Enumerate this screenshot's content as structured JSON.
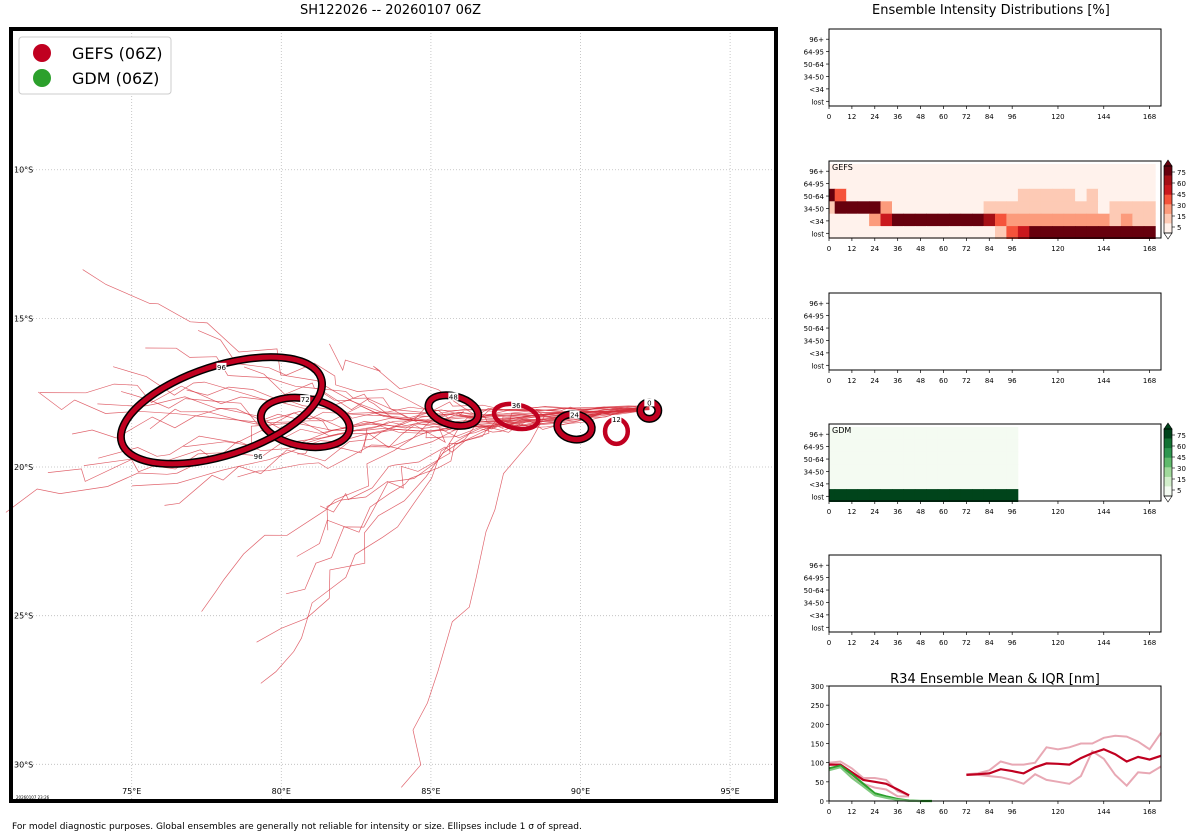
{
  "map": {
    "title": "SH122026 -- 20260107 06Z",
    "lon_ticks": [
      "75°E",
      "80°E",
      "85°E",
      "90°E",
      "95°E"
    ],
    "lon_values": [
      75,
      80,
      85,
      90,
      95
    ],
    "lat_ticks": [
      "10°S",
      "15°S",
      "20°S",
      "25°S",
      "30°S"
    ],
    "lat_values": [
      -10,
      -15,
      -20,
      -25,
      -30
    ],
    "lon_range": [
      71,
      96.5
    ],
    "lat_range": [
      -31.2,
      -5.3
    ],
    "legend": [
      {
        "label": "GEFS (06Z)",
        "color": "#c00020"
      },
      {
        "label": "GDM (06Z)",
        "color": "#2ca02c"
      }
    ],
    "stamp": "20260107 23:26",
    "ellipses": [
      {
        "hour": "0",
        "lon": 92.3,
        "lat": -18.1,
        "rx_deg": 0.3,
        "ry_deg": 0.28,
        "tilt": 0
      },
      {
        "hour": "12",
        "lon": 91.2,
        "lat": -18.8,
        "rx_deg": 0.38,
        "ry_deg": 0.42,
        "tilt": 0
      },
      {
        "hour": "24",
        "lon": 89.8,
        "lat": -18.65,
        "rx_deg": 0.58,
        "ry_deg": 0.42,
        "tilt": 10
      },
      {
        "hour": "36",
        "lon": 87.85,
        "lat": -18.3,
        "rx_deg": 0.75,
        "ry_deg": 0.4,
        "tilt": 12
      },
      {
        "hour": "48",
        "lon": 85.75,
        "lat": -18.1,
        "rx_deg": 0.85,
        "ry_deg": 0.48,
        "tilt": 15
      },
      {
        "hour": "72",
        "lon": 80.8,
        "lat": -18.5,
        "rx_deg": 1.5,
        "ry_deg": 0.8,
        "tilt": 10
      },
      {
        "hour": "96",
        "lon": 78.0,
        "lat": -18.1,
        "rx_deg": 3.5,
        "ry_deg": 1.5,
        "tilt": -18
      }
    ],
    "tracks_color": "#d6303c"
  },
  "right_panels": {
    "top_title": "Ensemble Intensity Distributions [%]",
    "y_labels": [
      "96+",
      "64-95",
      "50-64",
      "34-50",
      "<34",
      "lost"
    ],
    "x_ticks": [
      0,
      12,
      24,
      36,
      48,
      60,
      72,
      84,
      96,
      120,
      144,
      168
    ],
    "panels": [
      {
        "label": "",
        "colorbar": null
      },
      {
        "label": "GEFS",
        "colorbar": "red"
      },
      {
        "label": "",
        "colorbar": null
      },
      {
        "label": "GDM",
        "colorbar": "green"
      },
      {
        "label": "",
        "colorbar": null
      }
    ],
    "colorbar_ticks": [
      75,
      60,
      45,
      30,
      15,
      5
    ]
  },
  "chart_data": [
    {
      "type": "heatmap",
      "title": "GEFS",
      "categories_x": [
        0,
        6,
        12,
        18,
        24,
        30,
        36,
        42,
        48,
        54,
        60,
        66,
        72,
        78,
        84,
        90,
        96,
        102,
        108,
        114,
        120,
        126,
        132,
        138,
        144,
        150,
        156,
        162,
        168
      ],
      "categories_y": [
        "96+",
        "64-95",
        "50-64",
        "34-50",
        "<34",
        "lost"
      ],
      "rows": {
        "96+": [
          3,
          3,
          3,
          3,
          3,
          3,
          3,
          3,
          3,
          3,
          3,
          3,
          3,
          3,
          3,
          3,
          3,
          3,
          3,
          3,
          3,
          3,
          3,
          3,
          3,
          3,
          3,
          3,
          3
        ],
        "64-95": [
          3,
          3,
          3,
          3,
          3,
          3,
          3,
          3,
          3,
          3,
          3,
          3,
          3,
          3,
          3,
          3,
          3,
          3,
          3,
          3,
          3,
          3,
          3,
          3,
          3,
          3,
          3,
          3,
          3
        ],
        "50-64": [
          90,
          40,
          3,
          3,
          3,
          3,
          3,
          3,
          3,
          3,
          3,
          3,
          3,
          3,
          3,
          3,
          3,
          15,
          15,
          15,
          15,
          15,
          3,
          15,
          3,
          3,
          3,
          3,
          3
        ],
        "34-50": [
          15,
          85,
          90,
          90,
          80,
          30,
          3,
          3,
          3,
          3,
          3,
          3,
          3,
          3,
          15,
          15,
          15,
          15,
          15,
          15,
          15,
          15,
          15,
          15,
          3,
          15,
          15,
          15,
          15
        ],
        "<34": [
          3,
          3,
          3,
          3,
          30,
          60,
          90,
          90,
          90,
          90,
          90,
          90,
          90,
          90,
          70,
          45,
          30,
          30,
          30,
          30,
          30,
          30,
          30,
          30,
          30,
          15,
          30,
          15,
          15
        ],
        "lost": [
          3,
          3,
          3,
          3,
          3,
          3,
          3,
          3,
          3,
          3,
          3,
          3,
          3,
          3,
          3,
          15,
          40,
          60,
          85,
          85,
          85,
          85,
          85,
          85,
          85,
          85,
          85,
          85,
          85
        ]
      },
      "colorbar_ticks": [
        5,
        15,
        30,
        45,
        60,
        75
      ]
    },
    {
      "type": "heatmap",
      "title": "GDM",
      "categories_x": [
        0,
        6,
        12,
        18,
        24,
        30,
        36,
        42,
        48,
        54,
        60,
        66,
        72,
        78,
        84,
        90,
        96
      ],
      "categories_y": [
        "96+",
        "64-95",
        "50-64",
        "34-50",
        "<34",
        "lost"
      ],
      "rows": {
        "96+": [
          2,
          2,
          2,
          2,
          2,
          2,
          2,
          2,
          2,
          2,
          2,
          2,
          2,
          2,
          2,
          2,
          2
        ],
        "64-95": [
          2,
          2,
          2,
          2,
          2,
          2,
          2,
          2,
          2,
          2,
          2,
          2,
          2,
          2,
          2,
          2,
          2
        ],
        "50-64": [
          2,
          2,
          2,
          2,
          2,
          2,
          2,
          2,
          2,
          2,
          2,
          2,
          2,
          2,
          2,
          2,
          2
        ],
        "34-50": [
          2,
          2,
          2,
          2,
          2,
          2,
          2,
          2,
          2,
          2,
          2,
          2,
          2,
          2,
          2,
          2,
          2
        ],
        "<34": [
          2,
          2,
          2,
          2,
          2,
          2,
          2,
          2,
          2,
          2,
          2,
          2,
          2,
          2,
          2,
          2,
          2
        ],
        "lost": [
          95,
          95,
          95,
          95,
          95,
          95,
          95,
          95,
          95,
          95,
          95,
          95,
          95,
          95,
          95,
          95,
          95
        ]
      },
      "colorbar_ticks": [
        5,
        15,
        30,
        45,
        60,
        75
      ]
    },
    {
      "type": "line",
      "title": "R34 Ensemble Mean & IQR [nm]",
      "ylim": [
        0,
        300
      ],
      "yticks": [
        0,
        50,
        100,
        150,
        200,
        250,
        300
      ],
      "xticks": [
        0,
        12,
        24,
        36,
        48,
        60,
        72,
        84,
        96,
        120,
        144,
        168
      ],
      "series": [
        {
          "color": "#e8a8b4",
          "role": "gefs-iqr-upper",
          "points": [
            [
              0,
              100
            ],
            [
              6,
              103
            ],
            [
              12,
              85
            ],
            [
              18,
              60
            ],
            [
              24,
              60
            ],
            [
              30,
              55
            ],
            [
              36,
              25
            ],
            [
              42,
              15
            ]
          ]
        },
        {
          "color": "#e8a8b4",
          "role": "gefs-iqr-lower",
          "points": [
            [
              0,
              85
            ],
            [
              6,
              90
            ],
            [
              12,
              65
            ],
            [
              18,
              45
            ],
            [
              24,
              35
            ],
            [
              30,
              30
            ],
            [
              36,
              12
            ],
            [
              42,
              12
            ]
          ]
        },
        {
          "color": "#c00020",
          "role": "gefs-mean",
          "points": [
            [
              0,
              95
            ],
            [
              6,
              95
            ],
            [
              12,
              75
            ],
            [
              18,
              55
            ],
            [
              24,
              50
            ],
            [
              30,
              45
            ],
            [
              36,
              30
            ],
            [
              42,
              15
            ]
          ]
        },
        {
          "color": "#e8a8b4",
          "role": "gefs-iqr-upper-late",
          "points": [
            [
              72,
              70
            ],
            [
              78,
              72
            ],
            [
              84,
              80
            ],
            [
              90,
              103
            ],
            [
              96,
              95
            ],
            [
              102,
              95
            ],
            [
              108,
              100
            ],
            [
              114,
              140
            ],
            [
              120,
              135
            ],
            [
              126,
              140
            ],
            [
              132,
              150
            ],
            [
              138,
              150
            ],
            [
              144,
              165
            ],
            [
              150,
              170
            ],
            [
              156,
              168
            ],
            [
              162,
              155
            ],
            [
              168,
              135
            ],
            [
              174,
              178
            ]
          ]
        },
        {
          "color": "#e8a8b4",
          "role": "gefs-iqr-lower-late",
          "points": [
            [
              72,
              68
            ],
            [
              78,
              68
            ],
            [
              84,
              65
            ],
            [
              90,
              62
            ],
            [
              96,
              55
            ],
            [
              102,
              45
            ],
            [
              108,
              70
            ],
            [
              114,
              55
            ],
            [
              120,
              50
            ],
            [
              126,
              45
            ],
            [
              132,
              65
            ],
            [
              138,
              130
            ],
            [
              144,
              110
            ],
            [
              150,
              68
            ],
            [
              156,
              40
            ],
            [
              162,
              75
            ],
            [
              168,
              72
            ],
            [
              174,
              90
            ]
          ]
        },
        {
          "color": "#c00020",
          "role": "gefs-mean-late",
          "points": [
            [
              72,
              68
            ],
            [
              78,
              70
            ],
            [
              84,
              72
            ],
            [
              90,
              83
            ],
            [
              96,
              78
            ],
            [
              102,
              72
            ],
            [
              108,
              88
            ],
            [
              114,
              98
            ],
            [
              120,
              97
            ],
            [
              126,
              95
            ],
            [
              132,
              112
            ],
            [
              138,
              125
            ],
            [
              144,
              135
            ],
            [
              150,
              122
            ],
            [
              156,
              103
            ],
            [
              162,
              115
            ],
            [
              168,
              108
            ],
            [
              174,
              118
            ]
          ]
        },
        {
          "color": "#2ca02c",
          "role": "gdm-mean",
          "points": [
            [
              0,
              85
            ],
            [
              6,
              92
            ],
            [
              12,
              70
            ],
            [
              18,
              45
            ],
            [
              24,
              20
            ],
            [
              30,
              12
            ],
            [
              36,
              5
            ],
            [
              42,
              1
            ],
            [
              48,
              0
            ],
            [
              54,
              0
            ]
          ]
        },
        {
          "color": "#7fc97f",
          "role": "gdm-iqr",
          "points": [
            [
              0,
              80
            ],
            [
              6,
              88
            ],
            [
              12,
              60
            ],
            [
              18,
              38
            ],
            [
              24,
              15
            ],
            [
              30,
              8
            ],
            [
              36,
              3
            ],
            [
              42,
              0
            ],
            [
              48,
              0
            ]
          ]
        }
      ]
    }
  ],
  "footer": "For model diagnostic purposes. Global ensembles are generally not reliable for intensity or size. Ellipses include 1 σ of spread."
}
